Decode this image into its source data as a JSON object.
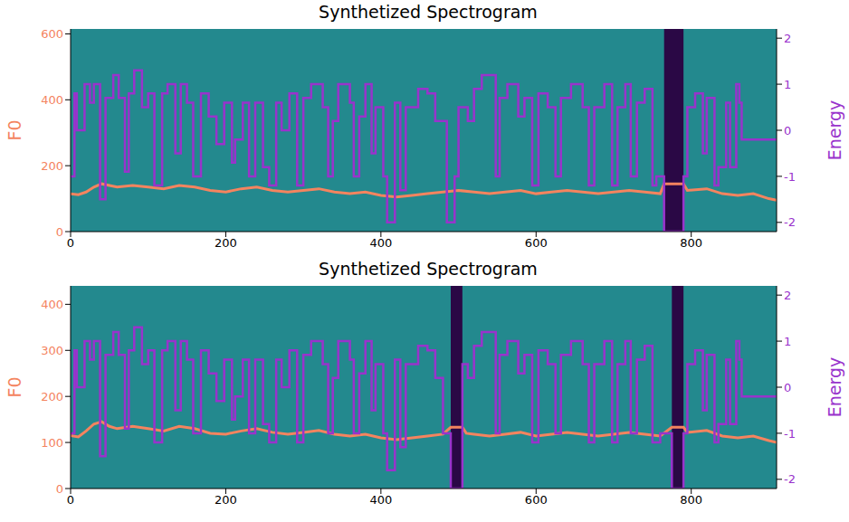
{
  "chart_data": [
    {
      "type": "line",
      "title": "Synthetized Spectrogram",
      "y_label": "F0",
      "y2_label": "Energy",
      "xlim": [
        0,
        910
      ],
      "xticks": [
        0,
        200,
        400,
        600,
        800
      ],
      "ylim": [
        0,
        615
      ],
      "yticks": [
        0,
        200,
        400,
        600
      ],
      "y2lim": [
        -2.2,
        2.2
      ],
      "y2ticks": [
        -2,
        -1,
        0,
        1,
        2
      ],
      "silence": [
        [
          765,
          790
        ]
      ],
      "silence_color": "#2a0845",
      "series": [
        {
          "name": "F0",
          "color": "#f4845f",
          "line_style": "solid",
          "x": [
            0,
            10,
            20,
            30,
            40,
            50,
            60,
            80,
            100,
            120,
            140,
            160,
            180,
            200,
            220,
            240,
            260,
            280,
            300,
            320,
            340,
            360,
            380,
            400,
            420,
            440,
            460,
            480,
            500,
            520,
            540,
            560,
            580,
            600,
            620,
            640,
            660,
            680,
            700,
            720,
            740,
            760,
            765,
            790,
            795,
            820,
            840,
            860,
            880,
            900,
            910
          ],
          "values": [
            115,
            112,
            120,
            135,
            145,
            140,
            135,
            140,
            135,
            130,
            140,
            135,
            125,
            120,
            130,
            135,
            125,
            120,
            125,
            130,
            120,
            115,
            120,
            110,
            105,
            110,
            115,
            120,
            125,
            120,
            115,
            120,
            125,
            115,
            120,
            125,
            120,
            115,
            120,
            125,
            120,
            115,
            145,
            145,
            125,
            130,
            115,
            110,
            115,
            100,
            95
          ]
        },
        {
          "name": "Energy",
          "axis": "y2",
          "color": "#9933cc",
          "line_style": "step",
          "x": [
            0,
            5,
            8,
            18,
            25,
            30,
            38,
            45,
            55,
            62,
            70,
            75,
            82,
            92,
            100,
            108,
            118,
            125,
            135,
            142,
            150,
            158,
            168,
            178,
            188,
            198,
            208,
            212,
            222,
            230,
            238,
            248,
            256,
            265,
            272,
            282,
            292,
            300,
            310,
            325,
            332,
            338,
            345,
            360,
            365,
            372,
            380,
            388,
            393,
            403,
            408,
            418,
            425,
            432,
            448,
            460,
            470,
            485,
            495,
            500,
            512,
            520,
            530,
            548,
            553,
            563,
            577,
            585,
            595,
            603,
            615,
            625,
            632,
            645,
            660,
            668,
            675,
            688,
            698,
            705,
            715,
            722,
            730,
            740,
            750,
            755,
            765,
            790,
            795,
            805,
            815,
            820,
            830,
            835,
            845,
            850,
            858,
            862,
            865,
            910
          ],
          "values": [
            -1,
            0.8,
            0,
            1,
            0.6,
            1,
            -1.5,
            0.7,
            1.2,
            0.7,
            -0.9,
            0.8,
            1.3,
            0.5,
            0.8,
            -1.2,
            0.8,
            1,
            -0.5,
            1,
            0.6,
            -1,
            0.8,
            0.3,
            -0.3,
            0.6,
            -0.7,
            -0.2,
            0.6,
            -1,
            0.6,
            -0.8,
            -1.2,
            0.6,
            0,
            0.8,
            -1.2,
            0.7,
            1,
            0.5,
            -1,
            0.2,
            1,
            0.6,
            -1,
            0.3,
            1,
            -0.5,
            0.5,
            -1,
            -2,
            0.6,
            -1.3,
            0.5,
            0.9,
            0.8,
            0.2,
            -2,
            -1,
            0.5,
            0.2,
            0.9,
            1.2,
            -1,
            0.7,
            1,
            0.3,
            0.7,
            -1.2,
            0.8,
            0.5,
            -1,
            0.7,
            1,
            0.5,
            -1.2,
            0.5,
            1,
            -1.2,
            0.5,
            1,
            -1,
            0.6,
            0.9,
            -1.2,
            -1,
            -2.2,
            -1,
            0.5,
            0.8,
            -0.5,
            0.7,
            -1.2,
            -0.8,
            0.6,
            -0.8,
            1,
            0.6,
            -0.2,
            -0.2
          ]
        }
      ]
    },
    {
      "type": "line",
      "title": "Synthetized Spectrogram",
      "y_label": "F0",
      "y2_label": "Energy",
      "xlim": [
        0,
        910
      ],
      "xticks": [
        0,
        200,
        400,
        600,
        800
      ],
      "ylim": [
        0,
        440
      ],
      "yticks": [
        0,
        100,
        200,
        300,
        400
      ],
      "y2lim": [
        -2.2,
        2.2
      ],
      "y2ticks": [
        -2,
        -1,
        0,
        1,
        2
      ],
      "silence": [
        [
          490,
          505
        ],
        [
          775,
          790
        ]
      ],
      "silence_color": "#2a0845",
      "series": [
        {
          "name": "F0",
          "color": "#f4845f",
          "line_style": "solid",
          "x": [
            0,
            10,
            20,
            30,
            40,
            50,
            60,
            80,
            100,
            120,
            140,
            160,
            180,
            200,
            220,
            240,
            260,
            280,
            300,
            320,
            340,
            360,
            380,
            400,
            420,
            440,
            460,
            480,
            490,
            505,
            510,
            520,
            540,
            560,
            580,
            600,
            620,
            640,
            660,
            680,
            700,
            720,
            740,
            760,
            775,
            790,
            795,
            820,
            840,
            860,
            880,
            900,
            910
          ],
          "values": [
            115,
            112,
            125,
            140,
            145,
            135,
            130,
            135,
            130,
            125,
            135,
            130,
            120,
            118,
            125,
            130,
            122,
            118,
            122,
            126,
            118,
            114,
            118,
            110,
            106,
            110,
            114,
            118,
            133,
            133,
            120,
            118,
            114,
            118,
            122,
            114,
            118,
            122,
            118,
            114,
            118,
            122,
            118,
            114,
            133,
            133,
            122,
            126,
            114,
            110,
            114,
            104,
            100
          ]
        },
        {
          "name": "Energy",
          "axis": "y2",
          "color": "#9933cc",
          "line_style": "step",
          "x": [
            0,
            5,
            8,
            18,
            25,
            30,
            38,
            45,
            55,
            62,
            70,
            75,
            82,
            92,
            100,
            108,
            118,
            125,
            135,
            142,
            150,
            158,
            168,
            178,
            188,
            198,
            208,
            212,
            222,
            230,
            238,
            248,
            256,
            265,
            272,
            282,
            292,
            300,
            310,
            325,
            332,
            338,
            345,
            360,
            365,
            372,
            380,
            388,
            393,
            403,
            408,
            418,
            425,
            432,
            448,
            460,
            470,
            480,
            490,
            505,
            512,
            520,
            530,
            548,
            553,
            563,
            577,
            585,
            595,
            603,
            615,
            625,
            632,
            645,
            660,
            668,
            675,
            688,
            698,
            705,
            715,
            722,
            730,
            740,
            750,
            760,
            775,
            790,
            795,
            805,
            815,
            820,
            830,
            835,
            845,
            850,
            858,
            862,
            865,
            910
          ],
          "values": [
            -1,
            0.8,
            0,
            1,
            0.6,
            1,
            -1.5,
            0.7,
            1.2,
            0.7,
            -0.9,
            0.8,
            1.3,
            0.5,
            0.8,
            -1.2,
            0.8,
            1,
            -0.5,
            1,
            0.6,
            -1,
            0.8,
            0.3,
            -0.3,
            0.6,
            -0.7,
            -0.2,
            0.6,
            -1,
            0.6,
            -0.8,
            -1.2,
            0.6,
            0,
            0.8,
            -1.2,
            0.7,
            1,
            0.5,
            -1,
            0.2,
            1,
            0.6,
            -1,
            0.3,
            1,
            -0.5,
            0.5,
            -1,
            -1.8,
            0.6,
            -1.3,
            0.5,
            0.9,
            0.8,
            0.2,
            -1,
            -2.2,
            0.5,
            0.2,
            0.9,
            1.2,
            -1,
            0.7,
            1,
            0.3,
            0.7,
            -1.2,
            0.8,
            0.5,
            -1,
            0.7,
            1,
            0.5,
            -1.2,
            0.5,
            1,
            -1.2,
            0.5,
            1,
            -1,
            0.6,
            0.9,
            -1.2,
            -1,
            -2.2,
            -1,
            0.5,
            0.8,
            -0.5,
            0.7,
            -1.2,
            -0.8,
            0.6,
            -0.8,
            1,
            0.6,
            -0.2,
            -0.2
          ]
        }
      ]
    }
  ]
}
